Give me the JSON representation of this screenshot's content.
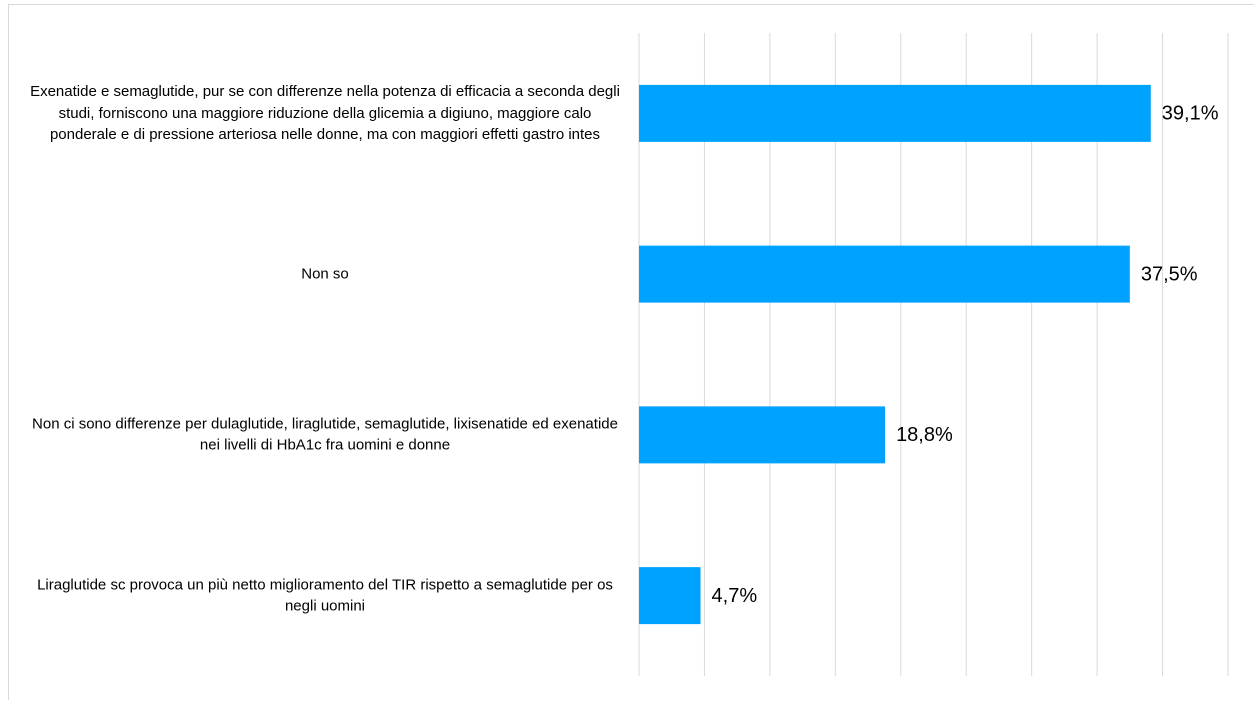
{
  "chart_data": {
    "type": "hbar",
    "categories": [
      "Exenatide e semaglutide, pur se con differenze nella potenza di efficacia a seconda degli studi, forniscono una maggiore riduzione della glicemia a digiuno, maggiore calo ponderale e di pressione arteriosa nelle donne, ma con maggiori effetti gastro intes",
      "Non so",
      "Non ci sono differenze per dulaglutide, liraglutide, semaglutide, lixisenatide ed exenatide nei livelli di HbA1c fra uomini e donne",
      "Liraglutide sc provoca un più netto miglioramento del TIR rispetto a semaglutide per os negli uomini"
    ],
    "values": [
      39.1,
      37.5,
      18.8,
      4.7
    ],
    "value_labels": [
      "39,1%",
      "37,5%",
      "18,8%",
      "4,7%"
    ],
    "color": "#00a2ff",
    "xlim": [
      0,
      45
    ],
    "xticks": [
      0,
      5,
      10,
      15,
      20,
      25,
      30,
      35,
      40,
      45
    ],
    "grid": true,
    "show_tick_labels": false
  }
}
